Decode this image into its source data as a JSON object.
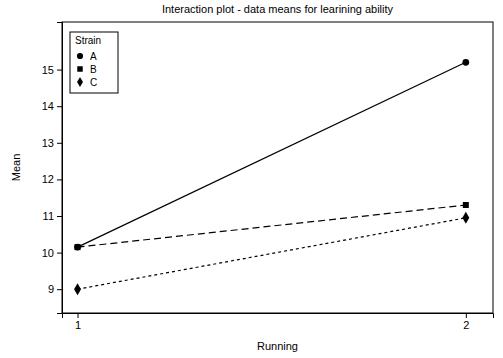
{
  "chart_data": {
    "type": "line",
    "title": "Interaction plot - data means for learining ability",
    "x_label": "Running",
    "y_label": "Mean",
    "legend_title": "Strain",
    "x": [
      1,
      2
    ],
    "series": [
      {
        "name": "A",
        "color": "#000000",
        "marker": "circle",
        "line_style": "solid",
        "values": [
          10.15,
          15.2
        ]
      },
      {
        "name": "B",
        "color": "#000000",
        "marker": "square",
        "line_style": "dashed",
        "values": [
          10.15,
          11.3
        ]
      },
      {
        "name": "C",
        "color": "#000000",
        "marker": "diamond",
        "line_style": "dotted",
        "values": [
          9.0,
          10.95
        ]
      }
    ],
    "xlim": [
      0.96,
      2.07
    ],
    "xticks": [
      1,
      2
    ],
    "ylim": [
      8.35,
      16.3
    ],
    "yticks": [
      9,
      10,
      11,
      12,
      13,
      14,
      15
    ],
    "legend": "top-left",
    "grid": false
  }
}
